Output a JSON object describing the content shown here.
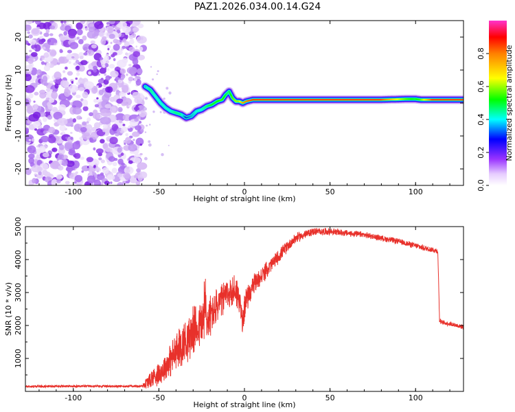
{
  "title": "PAZ1.2026.034.00.14.G24",
  "colors": {
    "snr_line": "#e8312b",
    "frame": "#000000"
  },
  "chart_data": [
    {
      "type": "heatmap",
      "name": "spectrogram",
      "xlabel": "Height of straight line (km)",
      "ylabel": "Frequency (Hz)",
      "xlim": [
        -128,
        128
      ],
      "ylim": [
        -25,
        25
      ],
      "xticks": [
        -100,
        -50,
        0,
        50,
        100
      ],
      "xtick_labels": [
        "-100",
        "-50",
        "0",
        "50",
        "100"
      ],
      "yticks": [
        20,
        10,
        0,
        -10,
        -20
      ],
      "ytick_labels": [
        "20",
        "10",
        "0",
        "-10",
        "-20"
      ],
      "noise_region_x": [
        -128,
        -59
      ],
      "ridge": {
        "x": [
          -58,
          -55,
          -52,
          -49,
          -46,
          -43,
          -40,
          -37,
          -34,
          -31,
          -28,
          -25,
          -22,
          -19,
          -16,
          -13,
          -11,
          -9,
          -7,
          -5,
          -3,
          -1,
          1,
          5,
          10,
          20,
          40,
          60,
          80,
          95,
          100,
          103,
          110,
          128
        ],
        "y": [
          5,
          4,
          2,
          0,
          -1.5,
          -2.5,
          -3,
          -3.5,
          -4.5,
          -4,
          -2.5,
          -2,
          -1,
          -0.5,
          0.5,
          1,
          2.5,
          3.5,
          1.5,
          0.5,
          0.5,
          0,
          0.5,
          1,
          1,
          1,
          1,
          1,
          1,
          1.2,
          1.2,
          1,
          1,
          1
        ],
        "amp": [
          0.35,
          0.45,
          0.4,
          0.4,
          0.4,
          0.4,
          0.45,
          0.45,
          0.3,
          0.35,
          0.4,
          0.4,
          0.45,
          0.5,
          0.5,
          0.55,
          0.5,
          0.45,
          0.55,
          0.6,
          0.6,
          0.75,
          0.8,
          0.85,
          0.85,
          0.85,
          0.85,
          0.85,
          0.85,
          0.55,
          0.5,
          0.55,
          0.85,
          0.85
        ]
      }
    },
    {
      "type": "colorbar",
      "name": "colorbar",
      "label": "Normalized spectral amplitude",
      "range": [
        0,
        1
      ],
      "ticks": [
        0.0,
        0.2,
        0.4,
        0.6,
        0.8
      ],
      "tick_labels": [
        "0.0",
        "0.2",
        "0.4",
        "0.6",
        "0.8"
      ]
    },
    {
      "type": "line",
      "name": "snr",
      "xlabel": "Height of straight line (km)",
      "ylabel": "SNR (10 * v/v)",
      "xlim": [
        -128,
        128
      ],
      "ylim": [
        0,
        5000
      ],
      "xticks": [
        -100,
        -50,
        0,
        50,
        100
      ],
      "xtick_labels": [
        "-100",
        "-50",
        "0",
        "50",
        "100"
      ],
      "yticks": [
        1000,
        2000,
        3000,
        4000,
        5000
      ],
      "ytick_labels": [
        "1000",
        "2000",
        "3000",
        "4000",
        "5000"
      ],
      "series": [
        {
          "name": "SNR",
          "x": [
            -128,
            -100,
            -75,
            -60,
            -56,
            -53,
            -50,
            -47,
            -44,
            -41,
            -38,
            -35,
            -32,
            -29,
            -26,
            -24,
            -23,
            -22,
            -20,
            -17,
            -14,
            -11,
            -8,
            -5,
            -3,
            -1,
            0,
            2,
            5,
            10,
            15,
            20,
            25,
            30,
            40,
            50,
            60,
            70,
            80,
            90,
            100,
            105,
            110,
            113,
            114,
            115,
            120,
            128
          ],
          "y": [
            150,
            160,
            155,
            160,
            300,
            450,
            550,
            700,
            900,
            1100,
            1300,
            1500,
            1700,
            1900,
            2000,
            2200,
            2500,
            2100,
            2300,
            2500,
            2700,
            2900,
            3000,
            3100,
            2800,
            2000,
            2600,
            2900,
            3200,
            3500,
            3800,
            4100,
            4400,
            4650,
            4850,
            4850,
            4800,
            4750,
            4650,
            4550,
            4420,
            4350,
            4300,
            4250,
            2150,
            2100,
            2050,
            1950
          ],
          "noise": [
            40,
            40,
            40,
            40,
            300,
            350,
            400,
            450,
            550,
            650,
            700,
            750,
            800,
            800,
            800,
            900,
            1800,
            800,
            700,
            650,
            600,
            550,
            550,
            550,
            550,
            500,
            450,
            400,
            350,
            300,
            260,
            230,
            200,
            170,
            130,
            120,
            110,
            100,
            100,
            100,
            100,
            100,
            100,
            100,
            80,
            80,
            80,
            80
          ]
        }
      ]
    }
  ]
}
